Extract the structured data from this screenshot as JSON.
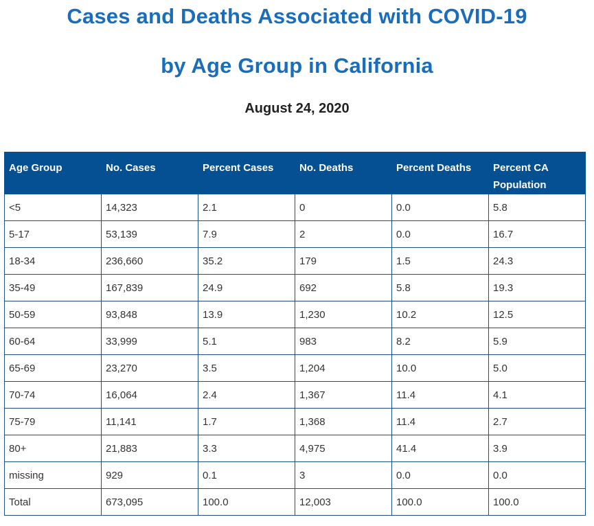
{
  "header": {
    "title_line1": "Cases and Deaths Associated with COVID-19",
    "title_line2": "by Age Group in California",
    "date": "August 24, 2020"
  },
  "colors": {
    "title": "#1a6dba",
    "header_bg": "#045093",
    "border": "#1f4f80"
  },
  "table": {
    "columns": [
      "Age Group",
      "No. Cases",
      "Percent Cases",
      "No. Deaths",
      "Percent Deaths",
      "Percent CA Population"
    ],
    "rows": [
      [
        "<5",
        "14,323",
        "2.1",
        "0",
        "0.0",
        "5.8"
      ],
      [
        "5-17",
        "53,139",
        "7.9",
        "2",
        "0.0",
        "16.7"
      ],
      [
        "18-34",
        "236,660",
        "35.2",
        "179",
        "1.5",
        "24.3"
      ],
      [
        "35-49",
        "167,839",
        "24.9",
        "692",
        "5.8",
        "19.3"
      ],
      [
        "50-59",
        "93,848",
        "13.9",
        "1,230",
        "10.2",
        "12.5"
      ],
      [
        "60-64",
        "33,999",
        "5.1",
        "983",
        "8.2",
        "5.9"
      ],
      [
        "65-69",
        "23,270",
        "3.5",
        "1,204",
        "10.0",
        "5.0"
      ],
      [
        "70-74",
        "16,064",
        "2.4",
        "1,367",
        "11.4",
        "4.1"
      ],
      [
        "75-79",
        "11,141",
        "1.7",
        "1,368",
        "11.4",
        "2.7"
      ],
      [
        "80+",
        "21,883",
        "3.3",
        "4,975",
        "41.4",
        "3.9"
      ],
      [
        "missing",
        "929",
        "0.1",
        "3",
        "0.0",
        "0.0"
      ],
      [
        "Total",
        "673,095",
        "100.0",
        "12,003",
        "100.0",
        "100.0"
      ]
    ]
  }
}
